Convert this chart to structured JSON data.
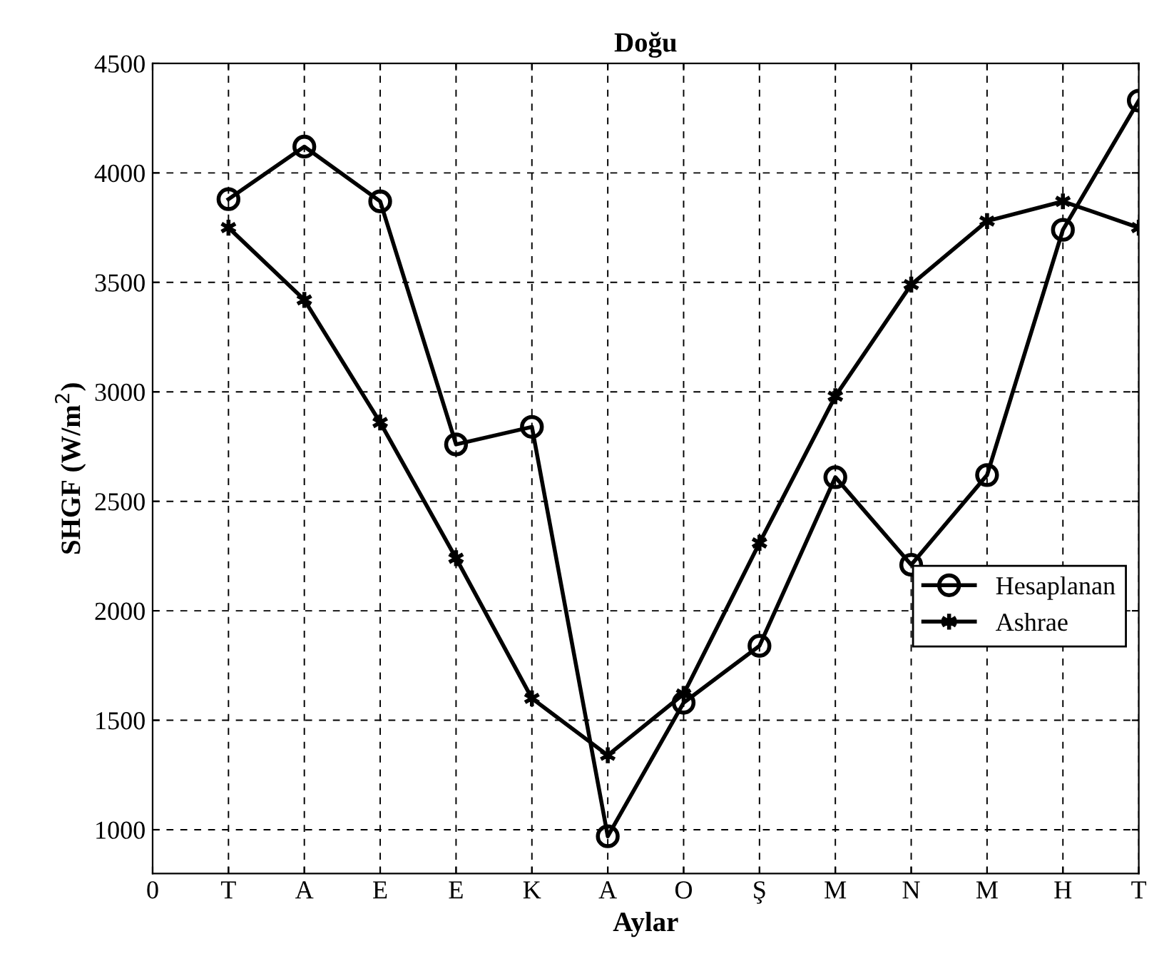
{
  "chart_data": {
    "type": "line",
    "title": "Doğu",
    "xlabel": "Aylar",
    "ylabel": "SHGF (W/m$^{2}$)",
    "categories": [
      "0",
      "T",
      "A",
      "E",
      "E",
      "K",
      "A",
      "O",
      "Ş",
      "M",
      "N",
      "M",
      "H",
      "T"
    ],
    "ylim": [
      800,
      4500
    ],
    "yticks": [
      1000,
      1500,
      2000,
      2500,
      3000,
      3500,
      4000,
      4500
    ],
    "grid": true,
    "legend": "right",
    "line_style": "solid",
    "series": [
      {
        "name": "Hesaplanan",
        "color": "#000000",
        "marker": "circle",
        "values": [
          null,
          3880,
          4120,
          3870,
          2760,
          2840,
          970,
          1580,
          1840,
          2610,
          2210,
          2620,
          3740,
          4330
        ]
      },
      {
        "name": "Ashrae",
        "color": "#000000",
        "marker": "cross",
        "values": [
          null,
          3750,
          3420,
          2860,
          2240,
          1600,
          1340,
          1620,
          2310,
          2980,
          3490,
          3780,
          3870,
          3750
        ]
      }
    ]
  }
}
